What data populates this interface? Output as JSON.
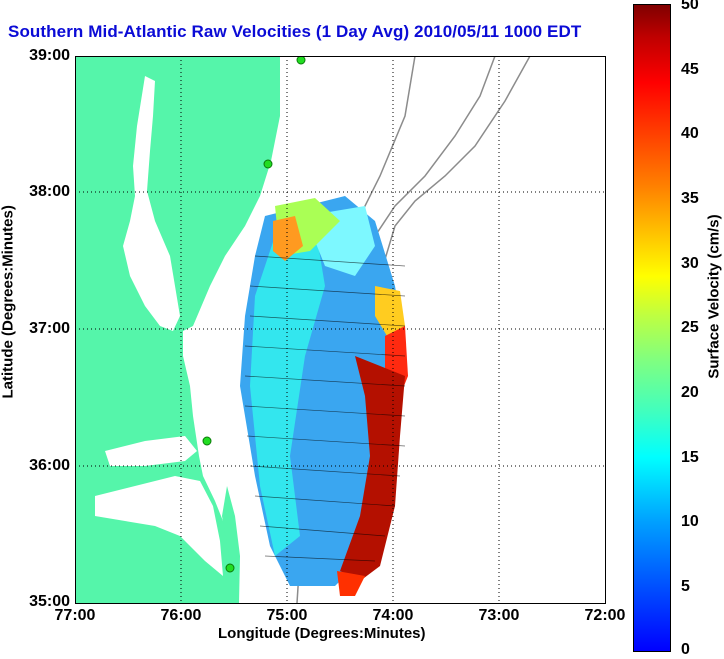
{
  "title": "Southern Mid-Atlantic Raw Velocities (1 Day Avg) 2010/05/11 1000 EDT",
  "axes": {
    "x_title": "Longitude (Degrees:Minutes)",
    "y_title": "Latitude (Degrees:Minutes)",
    "x_ticks": [
      "77:00",
      "76:00",
      "75:00",
      "74:00",
      "73:00",
      "72:00"
    ],
    "y_ticks": [
      "39:00",
      "38:00",
      "37:00",
      "36:00",
      "35:00"
    ]
  },
  "colorbar": {
    "title": "Surface Velocity (cm/s)",
    "ticks": [
      "50",
      "45",
      "40",
      "35",
      "30",
      "25",
      "20",
      "15",
      "10",
      "5",
      "0"
    ],
    "colors": [
      "#0000ff",
      "#00ffff",
      "#80ff80",
      "#ffff00",
      "#ff8000",
      "#ff0000",
      "#800000"
    ]
  },
  "map": {
    "land_color": "#55f5aa",
    "water_color": "#ffffff",
    "contour_color": "#8c8c8c",
    "arrow_color": "#000000",
    "station_color": "#22dd22"
  }
}
